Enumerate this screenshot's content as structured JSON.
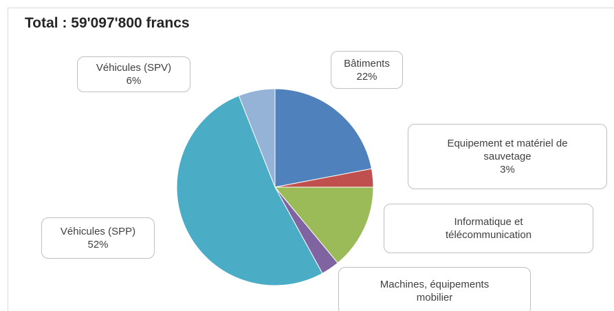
{
  "chart_data": {
    "type": "pie",
    "title": "Total : 59'097'800 francs",
    "categories": [
      "Bâtiments",
      "Equipement et matériel de sauvetage",
      "Informatique et télécommunication",
      "Machines, équipements mobilier",
      "Véhicules (SPP)",
      "Véhicules (SPV)"
    ],
    "values": [
      22,
      3,
      14,
      3,
      52,
      6
    ],
    "value_labels": [
      "22%",
      "3%",
      null,
      null,
      "52%",
      "6%"
    ],
    "colors": [
      "#4f81bd",
      "#c0504d",
      "#9bbb59",
      "#8064a2",
      "#4bacc6",
      "#95b3d7"
    ]
  }
}
